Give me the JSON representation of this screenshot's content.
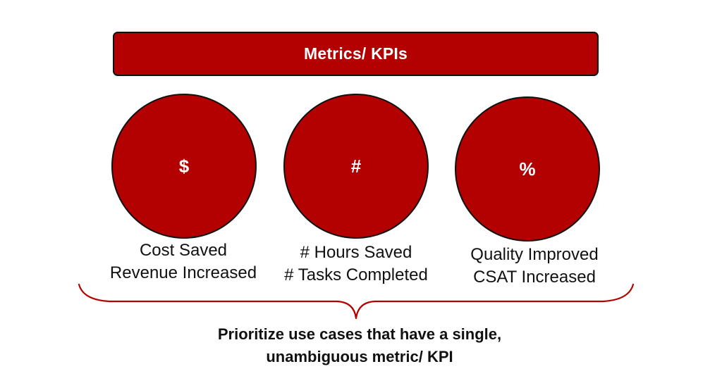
{
  "header": {
    "title": "Metrics/ KPIs"
  },
  "metrics": [
    {
      "symbol": "$",
      "line1": "Cost Saved",
      "line2": "Revenue Increased"
    },
    {
      "symbol": "#",
      "line1": "# Hours Saved",
      "line2": "# Tasks Completed"
    },
    {
      "symbol": "%",
      "line1": "Quality Improved",
      "line2": "CSAT Increased"
    }
  ],
  "conclusion": {
    "line1": "Prioritize use cases that have a single,",
    "line2": "unambiguous metric/ KPI"
  },
  "colors": {
    "accent": "#b30000",
    "text": "#111111",
    "brace": "#b30000"
  }
}
